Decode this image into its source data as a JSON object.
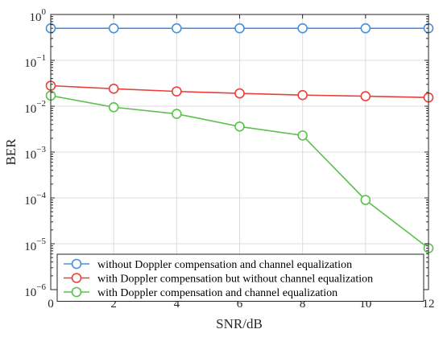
{
  "chart_data": {
    "type": "line",
    "xlabel": "SNR/dB",
    "ylabel": "BER",
    "xlim": [
      0,
      12
    ],
    "ylim": [
      1e-06,
      1
    ],
    "yscale": "log",
    "grid": true,
    "legend_position": "bottom-right",
    "x": [
      0,
      2,
      4,
      6,
      8,
      10,
      12
    ],
    "x_tick_labels": [
      "0",
      "2",
      "4",
      "6",
      "8",
      "10",
      "12"
    ],
    "y_ticks": [
      {
        "value": 1,
        "base": "10",
        "exp": "0"
      },
      {
        "value": 0.1,
        "base": "10",
        "exp": "−1"
      },
      {
        "value": 0.01,
        "base": "10",
        "exp": "−2"
      },
      {
        "value": 0.001,
        "base": "10",
        "exp": "−3"
      },
      {
        "value": 0.0001,
        "base": "10",
        "exp": "−4"
      },
      {
        "value": 1e-05,
        "base": "10",
        "exp": "−5"
      },
      {
        "value": 1e-06,
        "base": "10",
        "exp": "−6"
      }
    ],
    "series": [
      {
        "name": "without Doppler compensation and channel equalization",
        "color": "#4a90d9",
        "values": [
          0.5,
          0.5,
          0.5,
          0.5,
          0.5,
          0.5,
          0.5
        ]
      },
      {
        "name": "with Doppler compensation but without channel equalization",
        "color": "#e8403a",
        "values": [
          0.028,
          0.024,
          0.021,
          0.019,
          0.0175,
          0.0165,
          0.0155
        ]
      },
      {
        "name": "with Doppler compensation and channel equalization",
        "color": "#5cbf4e",
        "values": [
          0.017,
          0.0095,
          0.0068,
          0.0036,
          0.0023,
          9e-05,
          8e-06
        ]
      }
    ]
  }
}
